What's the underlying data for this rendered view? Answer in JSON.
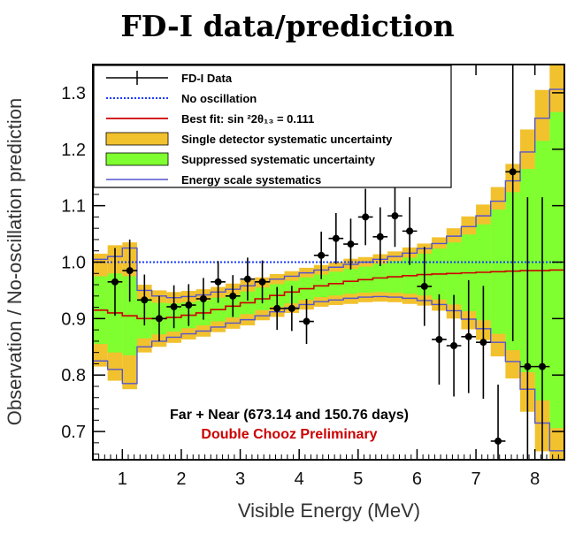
{
  "title": "FD-I data/prediction",
  "chart_data": {
    "type": "line",
    "title": "FD-I data/prediction",
    "xlabel": "Visible Energy (MeV)",
    "ylabel": "Observation / No-oscillation prediction",
    "xlim": [
      0.5,
      8.5
    ],
    "ylim": [
      0.65,
      1.35
    ],
    "xticks": [
      "1",
      "2",
      "3",
      "4",
      "5",
      "6",
      "7",
      "8"
    ],
    "yticks": [
      "0.7",
      "0.8",
      "0.9",
      "1.0",
      "1.1",
      "1.2",
      "1.3"
    ],
    "legend": {
      "position": "top-left",
      "entries": [
        {
          "label": "FD-I Data",
          "kind": "data",
          "color": "#000000"
        },
        {
          "label": "No oscillation",
          "kind": "dotted-line",
          "color": "#1a3cff"
        },
        {
          "label": "Best fit: sin ²2θ₁₃ = 0.111",
          "kind": "line",
          "color": "#cc0000"
        },
        {
          "label": "Single detector systematic uncertainty",
          "kind": "band",
          "color": "#f2c12e"
        },
        {
          "label": "Suppressed systematic uncertainty",
          "kind": "band",
          "color": "#7fff2f"
        },
        {
          "label": "Energy scale systematics",
          "kind": "outline",
          "color": "#5555cc"
        }
      ]
    },
    "annotations": [
      {
        "text": "Far + Near (673.14 and 150.76 days)",
        "color": "#000000"
      },
      {
        "text": "Double Chooz Preliminary",
        "color": "#cc0000"
      }
    ],
    "no_oscillation": 1.0,
    "bins": {
      "edges": [
        0.5,
        0.75,
        1.0,
        1.25,
        1.5,
        1.75,
        2.0,
        2.25,
        2.5,
        2.75,
        3.0,
        3.25,
        3.5,
        3.75,
        4.0,
        4.25,
        4.5,
        4.75,
        5.0,
        5.25,
        5.5,
        5.75,
        6.0,
        6.25,
        6.5,
        6.75,
        7.0,
        7.25,
        7.5,
        7.75,
        8.0,
        8.25,
        8.5
      ],
      "best_fit": [
        0.915,
        0.91,
        0.905,
        0.9,
        0.9,
        0.902,
        0.906,
        0.91,
        0.916,
        0.922,
        0.928,
        0.935,
        0.941,
        0.947,
        0.953,
        0.958,
        0.962,
        0.966,
        0.969,
        0.972,
        0.974,
        0.976,
        0.978,
        0.979,
        0.98,
        0.981,
        0.982,
        0.983,
        0.984,
        0.985,
        0.985,
        0.986
      ],
      "single_band": [
        0.1,
        0.12,
        0.13,
        0.06,
        0.05,
        0.045,
        0.043,
        0.042,
        0.04,
        0.04,
        0.04,
        0.038,
        0.038,
        0.037,
        0.037,
        0.037,
        0.038,
        0.04,
        0.04,
        0.042,
        0.045,
        0.05,
        0.055,
        0.065,
        0.08,
        0.1,
        0.12,
        0.15,
        0.19,
        0.25,
        0.32,
        0.38
      ],
      "suppressed_band": [
        0.06,
        0.07,
        0.07,
        0.035,
        0.028,
        0.025,
        0.023,
        0.022,
        0.021,
        0.02,
        0.02,
        0.02,
        0.02,
        0.02,
        0.02,
        0.02,
        0.021,
        0.022,
        0.023,
        0.025,
        0.028,
        0.032,
        0.037,
        0.045,
        0.055,
        0.068,
        0.085,
        0.11,
        0.14,
        0.18,
        0.23,
        0.28
      ],
      "energy_scale": [
        0.09,
        0.1,
        0.12,
        0.05,
        0.04,
        0.035,
        0.033,
        0.032,
        0.031,
        0.03,
        0.03,
        0.03,
        0.029,
        0.028,
        0.028,
        0.028,
        0.029,
        0.03,
        0.031,
        0.033,
        0.036,
        0.04,
        0.046,
        0.054,
        0.066,
        0.082,
        0.1,
        0.125,
        0.16,
        0.21,
        0.27,
        0.32
      ]
    },
    "series": [
      {
        "name": "FD-I Data",
        "x": [
          0.875,
          1.125,
          1.375,
          1.625,
          1.875,
          2.125,
          2.375,
          2.625,
          2.875,
          3.125,
          3.375,
          3.625,
          3.875,
          4.125,
          4.375,
          4.625,
          4.875,
          5.125,
          5.375,
          5.625,
          5.875,
          6.125,
          6.375,
          6.625,
          6.875,
          7.125,
          7.375,
          7.625,
          7.875,
          8.125
        ],
        "y": [
          0.965,
          0.985,
          0.933,
          0.9,
          0.921,
          0.924,
          0.935,
          0.965,
          0.94,
          0.97,
          0.965,
          0.918,
          0.918,
          0.895,
          1.012,
          1.042,
          1.032,
          1.08,
          1.045,
          1.082,
          1.055,
          0.957,
          0.863,
          0.852,
          0.868,
          0.858,
          0.683,
          1.16,
          0.815,
          0.815
        ],
        "err": [
          0.06,
          0.055,
          0.045,
          0.04,
          0.038,
          0.037,
          0.037,
          0.037,
          0.037,
          0.038,
          0.038,
          0.038,
          0.04,
          0.04,
          0.042,
          0.045,
          0.045,
          0.05,
          0.052,
          0.055,
          0.06,
          0.07,
          0.08,
          0.09,
          0.1,
          0.1,
          0.1,
          0.3,
          0.3,
          0.3
        ]
      }
    ],
    "grid": false
  }
}
